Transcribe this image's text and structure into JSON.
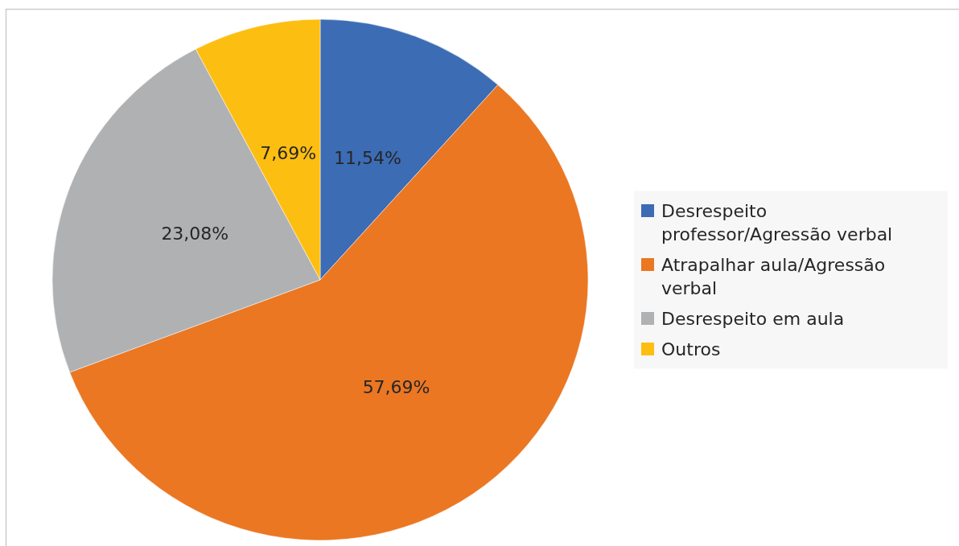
{
  "chart_data": {
    "type": "pie",
    "categories": [
      "Desrespeito professor/Agressão verbal",
      "Atrapalhar aula/Agressão verbal",
      "Desrespeito em aula",
      "Outros"
    ],
    "values": [
      11.54,
      57.69,
      23.08,
      7.69
    ],
    "colors": [
      "#3c6cb4",
      "#eb7723",
      "#b0b1b3",
      "#fdbe12"
    ],
    "value_labels": [
      "11,54%",
      "57,69%",
      "23,08%",
      "7,69%"
    ],
    "legend": "right"
  }
}
